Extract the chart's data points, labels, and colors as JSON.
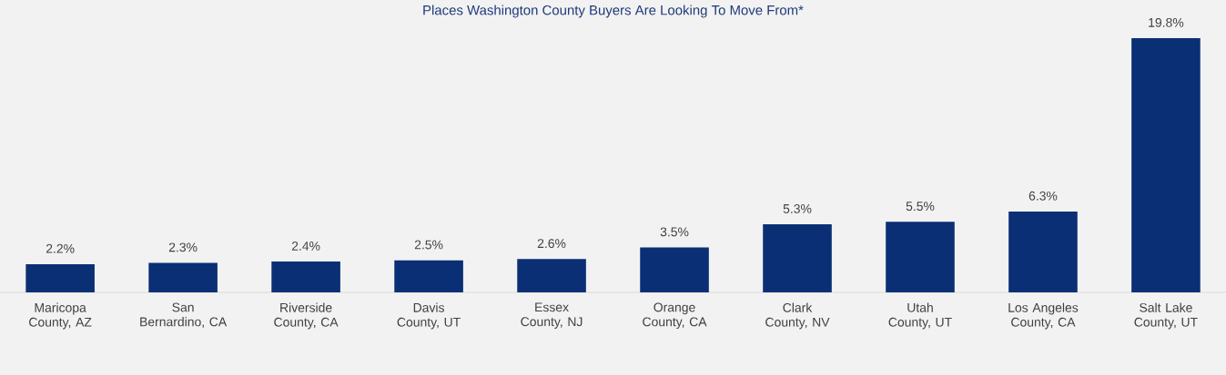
{
  "chart_data": {
    "type": "bar",
    "title": "Places Washington County Buyers Are Looking To Move From*",
    "categories": [
      "Maricopa County, AZ",
      "San Bernardino, CA",
      "Riverside County, CA",
      "Davis County, UT",
      "Essex County, NJ",
      "Orange County, CA",
      "Clark County, NV",
      "Utah County, UT",
      "Los Angeles County, CA",
      "Salt Lake County, UT"
    ],
    "values": [
      2.2,
      2.3,
      2.4,
      2.5,
      2.6,
      3.5,
      5.3,
      5.5,
      6.3,
      19.8
    ],
    "value_labels": [
      "2.2%",
      "2.3%",
      "2.4%",
      "2.5%",
      "2.6%",
      "3.5%",
      "5.3%",
      "5.5%",
      "6.3%",
      "19.8%"
    ],
    "color": "#0b2f75"
  }
}
